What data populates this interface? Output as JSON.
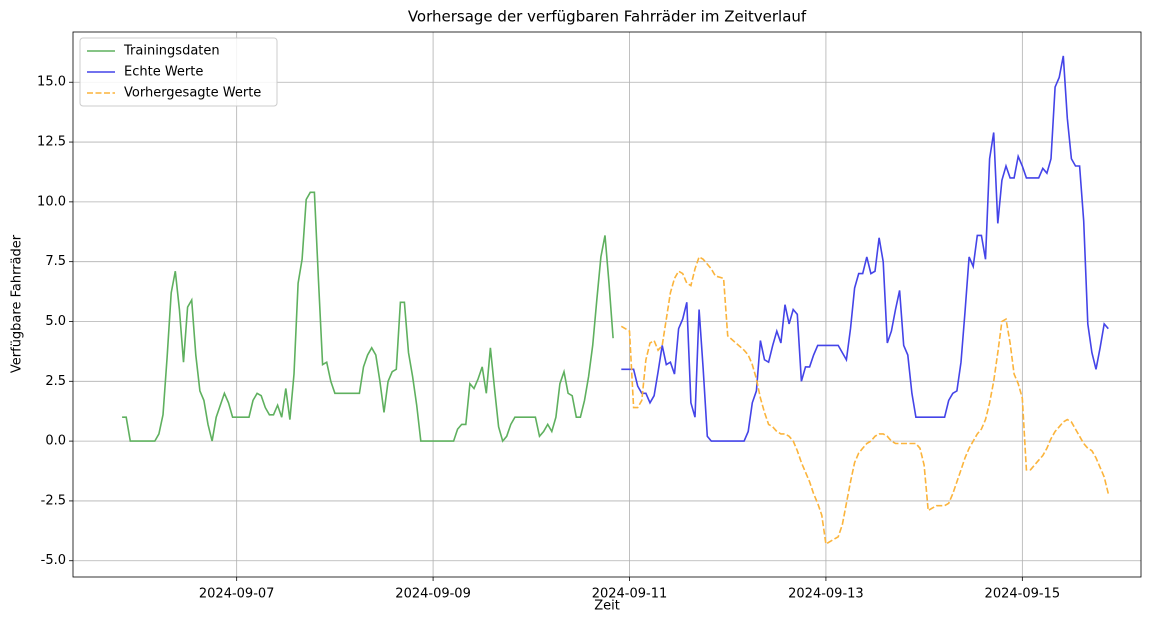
{
  "chart_data": {
    "type": "line",
    "title": "Vorhersage der verfügbaren Fahrräder im Zeitverlauf",
    "xlabel": "Zeit",
    "ylabel": "Verfügbare Fahrräder",
    "xlim": [
      "2024-09-05 08:00",
      "2024-09-16 05:00"
    ],
    "xticks": [
      {
        "value": "2024-09-07 00:00",
        "label": "2024-09-07"
      },
      {
        "value": "2024-09-09 00:00",
        "label": "2024-09-09"
      },
      {
        "value": "2024-09-11 00:00",
        "label": "2024-09-11"
      },
      {
        "value": "2024-09-13 00:00",
        "label": "2024-09-13"
      },
      {
        "value": "2024-09-15 00:00",
        "label": "2024-09-15"
      }
    ],
    "ylim": [
      -5.68,
      17.1
    ],
    "yticks": [
      {
        "value": -5,
        "label": "-5.0"
      },
      -2.5,
      {
        "value": 0,
        "label": "0.0"
      },
      2.5,
      {
        "value": 5,
        "label": "5.0"
      },
      7.5,
      {
        "value": 10,
        "label": "10.0"
      },
      12.5,
      {
        "value": 15,
        "label": "15.0"
      }
    ],
    "grid": true,
    "legend": "upper left",
    "series": [
      {
        "name": "Trainingsdaten",
        "color": "#5fb05f",
        "linestyle": "solid",
        "x": [
          "2024-09-05 20:00",
          "2024-09-05 21:00",
          "2024-09-05 22:00",
          "2024-09-06 04:00",
          "2024-09-06 05:00",
          "2024-09-06 06:00",
          "2024-09-06 07:00",
          "2024-09-06 08:00",
          "2024-09-06 09:00",
          "2024-09-06 10:00",
          "2024-09-06 11:00",
          "2024-09-06 12:00",
          "2024-09-06 13:00",
          "2024-09-06 14:00",
          "2024-09-06 15:00",
          "2024-09-06 16:00",
          "2024-09-06 17:00",
          "2024-09-06 18:00",
          "2024-09-06 19:00",
          "2024-09-06 20:00",
          "2024-09-06 21:00",
          "2024-09-06 22:00",
          "2024-09-06 23:00",
          "2024-09-07 02:00",
          "2024-09-07 03:00",
          "2024-09-07 04:00",
          "2024-09-07 05:00",
          "2024-09-07 06:00",
          "2024-09-07 07:00",
          "2024-09-07 08:00",
          "2024-09-07 09:00",
          "2024-09-07 10:00",
          "2024-09-07 11:00",
          "2024-09-07 12:00",
          "2024-09-07 13:00",
          "2024-09-07 14:00",
          "2024-09-07 15:00",
          "2024-09-07 16:00",
          "2024-09-07 17:00",
          "2024-09-07 18:00",
          "2024-09-07 19:00",
          "2024-09-07 20:00",
          "2024-09-07 21:00",
          "2024-09-07 22:00",
          "2024-09-07 23:00",
          "2024-09-08 00:00",
          "2024-09-08 06:00",
          "2024-09-08 07:00",
          "2024-09-08 08:00",
          "2024-09-08 09:00",
          "2024-09-08 10:00",
          "2024-09-08 11:00",
          "2024-09-08 12:00",
          "2024-09-08 13:00",
          "2024-09-08 14:00",
          "2024-09-08 15:00",
          "2024-09-08 16:00",
          "2024-09-08 17:00",
          "2024-09-08 18:00",
          "2024-09-08 19:00",
          "2024-09-08 20:00",
          "2024-09-08 21:00",
          "2024-09-09 05:00",
          "2024-09-09 06:00",
          "2024-09-09 07:00",
          "2024-09-09 08:00",
          "2024-09-09 09:00",
          "2024-09-09 10:00",
          "2024-09-09 11:00",
          "2024-09-09 12:00",
          "2024-09-09 13:00",
          "2024-09-09 14:00",
          "2024-09-09 15:00",
          "2024-09-09 16:00",
          "2024-09-09 17:00",
          "2024-09-09 18:00",
          "2024-09-09 19:00",
          "2024-09-09 20:00",
          "2024-09-10 01:00",
          "2024-09-10 02:00",
          "2024-09-10 03:00",
          "2024-09-10 04:00",
          "2024-09-10 05:00",
          "2024-09-10 06:00",
          "2024-09-10 07:00",
          "2024-09-10 08:00",
          "2024-09-10 09:00",
          "2024-09-10 10:00",
          "2024-09-10 11:00",
          "2024-09-10 12:00",
          "2024-09-10 13:00",
          "2024-09-10 14:00",
          "2024-09-10 15:00",
          "2024-09-10 16:00",
          "2024-09-10 17:00",
          "2024-09-10 18:00",
          "2024-09-10 19:00",
          "2024-09-10 20:00"
        ],
        "values": [
          1,
          1,
          0,
          0,
          0.3,
          1.1,
          3.5,
          6.2,
          7.1,
          5.5,
          3.3,
          5.6,
          5.9,
          3.6,
          2.1,
          1.7,
          0.7,
          0,
          1,
          1.5,
          2,
          1.6,
          1,
          1,
          1,
          1.7,
          2,
          1.9,
          1.4,
          1.1,
          1.1,
          1.5,
          1,
          2.2,
          0.9,
          2.8,
          6.6,
          7.6,
          10.1,
          10.4,
          10.4,
          6.7,
          3.2,
          3.3,
          2.5,
          2,
          2,
          3.1,
          3.6,
          3.9,
          3.6,
          2.5,
          1.2,
          2.5,
          2.9,
          3,
          5.8,
          5.8,
          3.7,
          2.7,
          1.5,
          0,
          0,
          0.5,
          0.7,
          0.7,
          2.4,
          2.2,
          2.6,
          3.1,
          2,
          3.9,
          2.2,
          0.6,
          0,
          0.2,
          0.7,
          1,
          1,
          0.2,
          0.4,
          0.7,
          0.4,
          1,
          2.4,
          2.9,
          2,
          1.9,
          1,
          1,
          1.7,
          2.7,
          4,
          5.9,
          7.7,
          8.6,
          6.6,
          4.3
        ]
      },
      {
        "name": "Echte Werte",
        "color": "#4444e8",
        "linestyle": "solid",
        "x": [
          "2024-09-10 22:00",
          "2024-09-10 23:00",
          "2024-09-11 00:00",
          "2024-09-11 01:00",
          "2024-09-11 02:00",
          "2024-09-11 03:00",
          "2024-09-11 04:00",
          "2024-09-11 05:00",
          "2024-09-11 06:00",
          "2024-09-11 07:00",
          "2024-09-11 08:00",
          "2024-09-11 09:00",
          "2024-09-11 10:00",
          "2024-09-11 11:00",
          "2024-09-11 12:00",
          "2024-09-11 13:00",
          "2024-09-11 14:00",
          "2024-09-11 15:00",
          "2024-09-11 16:00",
          "2024-09-11 17:00",
          "2024-09-11 18:00",
          "2024-09-11 19:00",
          "2024-09-11 20:00",
          "2024-09-12 04:00",
          "2024-09-12 05:00",
          "2024-09-12 06:00",
          "2024-09-12 07:00",
          "2024-09-12 08:00",
          "2024-09-12 09:00",
          "2024-09-12 10:00",
          "2024-09-12 11:00",
          "2024-09-12 12:00",
          "2024-09-12 13:00",
          "2024-09-12 14:00",
          "2024-09-12 15:00",
          "2024-09-12 16:00",
          "2024-09-12 17:00",
          "2024-09-12 18:00",
          "2024-09-12 19:00",
          "2024-09-12 20:00",
          "2024-09-12 21:00",
          "2024-09-12 22:00",
          "2024-09-13 03:00",
          "2024-09-13 04:00",
          "2024-09-13 05:00",
          "2024-09-13 06:00",
          "2024-09-13 07:00",
          "2024-09-13 08:00",
          "2024-09-13 09:00",
          "2024-09-13 10:00",
          "2024-09-13 11:00",
          "2024-09-13 12:00",
          "2024-09-13 13:00",
          "2024-09-13 14:00",
          "2024-09-13 15:00",
          "2024-09-13 16:00",
          "2024-09-13 17:00",
          "2024-09-13 18:00",
          "2024-09-13 19:00",
          "2024-09-13 20:00",
          "2024-09-13 21:00",
          "2024-09-13 22:00",
          "2024-09-14 05:00",
          "2024-09-14 06:00",
          "2024-09-14 07:00",
          "2024-09-14 08:00",
          "2024-09-14 09:00",
          "2024-09-14 10:00",
          "2024-09-14 11:00",
          "2024-09-14 12:00",
          "2024-09-14 13:00",
          "2024-09-14 14:00",
          "2024-09-14 15:00",
          "2024-09-14 16:00",
          "2024-09-14 17:00",
          "2024-09-14 18:00",
          "2024-09-14 19:00",
          "2024-09-14 20:00",
          "2024-09-14 21:00",
          "2024-09-14 22:00",
          "2024-09-14 23:00",
          "2024-09-15 00:00",
          "2024-09-15 01:00",
          "2024-09-15 04:00",
          "2024-09-15 05:00",
          "2024-09-15 06:00",
          "2024-09-15 07:00",
          "2024-09-15 08:00",
          "2024-09-15 09:00",
          "2024-09-15 10:00",
          "2024-09-15 11:00",
          "2024-09-15 12:00",
          "2024-09-15 13:00",
          "2024-09-15 14:00",
          "2024-09-15 15:00",
          "2024-09-15 16:00",
          "2024-09-15 17:00",
          "2024-09-15 18:00",
          "2024-09-15 19:00",
          "2024-09-15 20:00",
          "2024-09-15 21:00"
        ],
        "values": [
          3,
          3,
          3,
          3,
          2.3,
          2,
          2,
          1.6,
          1.9,
          2.9,
          4,
          3.2,
          3.3,
          2.8,
          4.7,
          5.1,
          5.8,
          1.6,
          1,
          5.5,
          3,
          0.2,
          0,
          0,
          0.4,
          1.6,
          2.1,
          4.2,
          3.4,
          3.3,
          4,
          4.6,
          4.1,
          5.7,
          4.9,
          5.5,
          5.3,
          2.5,
          3.1,
          3.1,
          3.6,
          4,
          4,
          3.7,
          3.4,
          4.7,
          6.4,
          7,
          7,
          7.7,
          7,
          7.1,
          8.5,
          7.5,
          4.1,
          4.6,
          5.5,
          6.3,
          4,
          3.6,
          2,
          1,
          1,
          1.7,
          2,
          2.1,
          3.3,
          5.4,
          7.7,
          7.3,
          8.6,
          8.6,
          7.6,
          11.8,
          12.9,
          9.1,
          10.9,
          11.5,
          11,
          11,
          11.9,
          11.5,
          11,
          11,
          11.4,
          11.2,
          11.8,
          14.8,
          15.2,
          16.1,
          13.5,
          11.8,
          11.5,
          11.5,
          9.2,
          4.9,
          3.7,
          3,
          3.9,
          4.9,
          4.7
        ]
      },
      {
        "name": "Vorhergesagte Werte",
        "color": "#fbb43c",
        "linestyle": "dashed",
        "x": [
          "2024-09-10 22:00",
          "2024-09-10 23:00",
          "2024-09-11 00:00",
          "2024-09-11 01:00",
          "2024-09-11 02:00",
          "2024-09-11 03:00",
          "2024-09-11 04:00",
          "2024-09-11 05:00",
          "2024-09-11 06:00",
          "2024-09-11 07:00",
          "2024-09-11 08:00",
          "2024-09-11 09:00",
          "2024-09-11 10:00",
          "2024-09-11 11:00",
          "2024-09-11 12:00",
          "2024-09-11 13:00",
          "2024-09-11 14:00",
          "2024-09-11 15:00",
          "2024-09-11 16:00",
          "2024-09-11 17:00",
          "2024-09-11 18:00",
          "2024-09-11 19:00",
          "2024-09-11 20:00",
          "2024-09-11 21:00",
          "2024-09-11 23:00",
          "2024-09-12 00:00",
          "2024-09-12 02:00",
          "2024-09-12 04:00",
          "2024-09-12 05:00",
          "2024-09-12 06:00",
          "2024-09-12 07:00",
          "2024-09-12 08:00",
          "2024-09-12 09:00",
          "2024-09-12 10:00",
          "2024-09-12 11:00",
          "2024-09-12 12:00",
          "2024-09-12 13:00",
          "2024-09-12 14:00",
          "2024-09-12 15:00",
          "2024-09-12 16:00",
          "2024-09-12 17:00",
          "2024-09-12 18:00",
          "2024-09-12 19:00",
          "2024-09-12 20:00",
          "2024-09-12 21:00",
          "2024-09-12 22:00",
          "2024-09-12 23:00",
          "2024-09-13 00:00",
          "2024-09-13 01:00",
          "2024-09-13 02:00",
          "2024-09-13 03:00",
          "2024-09-13 04:00",
          "2024-09-13 05:00",
          "2024-09-13 06:00",
          "2024-09-13 07:00",
          "2024-09-13 08:00",
          "2024-09-13 09:00",
          "2024-09-13 10:00",
          "2024-09-13 11:00",
          "2024-09-13 12:00",
          "2024-09-13 13:00",
          "2024-09-13 14:00",
          "2024-09-13 15:00",
          "2024-09-13 16:00",
          "2024-09-13 17:00",
          "2024-09-13 21:00",
          "2024-09-13 22:00",
          "2024-09-13 23:00",
          "2024-09-14 00:00",
          "2024-09-14 01:00",
          "2024-09-14 02:00",
          "2024-09-14 03:00",
          "2024-09-14 05:00",
          "2024-09-14 06:00",
          "2024-09-14 07:00",
          "2024-09-14 08:00",
          "2024-09-14 09:00",
          "2024-09-14 10:00",
          "2024-09-14 11:00",
          "2024-09-14 12:00",
          "2024-09-14 13:00",
          "2024-09-14 14:00",
          "2024-09-14 15:00",
          "2024-09-14 16:00",
          "2024-09-14 17:00",
          "2024-09-14 18:00",
          "2024-09-14 19:00",
          "2024-09-14 20:00",
          "2024-09-14 21:00",
          "2024-09-14 22:00",
          "2024-09-14 23:00",
          "2024-09-15 00:00",
          "2024-09-15 01:00",
          "2024-09-15 02:00",
          "2024-09-15 03:00",
          "2024-09-15 04:00",
          "2024-09-15 05:00",
          "2024-09-15 06:00",
          "2024-09-15 07:00",
          "2024-09-15 08:00",
          "2024-09-15 09:00",
          "2024-09-15 10:00",
          "2024-09-15 11:00",
          "2024-09-15 12:00",
          "2024-09-15 13:00",
          "2024-09-15 14:00",
          "2024-09-15 15:00",
          "2024-09-15 16:00",
          "2024-09-15 17:00",
          "2024-09-15 18:00",
          "2024-09-15 19:00",
          "2024-09-15 20:00",
          "2024-09-15 21:00"
        ],
        "values": [
          4.8,
          4.7,
          4.6,
          1.4,
          1.4,
          1.7,
          3.4,
          4.1,
          4.2,
          3.8,
          4,
          5.1,
          6.2,
          6.8,
          7.1,
          7,
          6.6,
          6.5,
          7.2,
          7.7,
          7.6,
          7.4,
          7.2,
          6.9,
          6.8,
          4.4,
          4.1,
          3.8,
          3.6,
          3.2,
          2.6,
          1.8,
          1.2,
          0.7,
          0.6,
          0.4,
          0.3,
          0.3,
          0.2,
          0,
          -0.4,
          -0.9,
          -1.3,
          -1.7,
          -2.2,
          -2.6,
          -3.1,
          -4.3,
          -4.2,
          -4.1,
          -4,
          -3.5,
          -2.6,
          -1.7,
          -0.9,
          -0.5,
          -0.3,
          -0.1,
          0,
          0.2,
          0.3,
          0.3,
          0.2,
          0,
          -0.1,
          -0.1,
          -0.1,
          -0.3,
          -1,
          -2.9,
          -2.8,
          -2.7,
          -2.7,
          -2.6,
          -2.2,
          -1.7,
          -1.2,
          -0.7,
          -0.3,
          0,
          0.3,
          0.5,
          0.9,
          1.6,
          2.5,
          3.7,
          5,
          5.1,
          4.1,
          2.8,
          2.4,
          1.8,
          -1.2,
          -1.2,
          -1,
          -0.8,
          -0.6,
          -0.3,
          0.1,
          0.4,
          0.6,
          0.8,
          0.9,
          0.8,
          0.5,
          0.2,
          -0.1,
          -0.3,
          -0.4,
          -0.7,
          -1.1,
          -1.5,
          -2.2
        ]
      }
    ]
  }
}
